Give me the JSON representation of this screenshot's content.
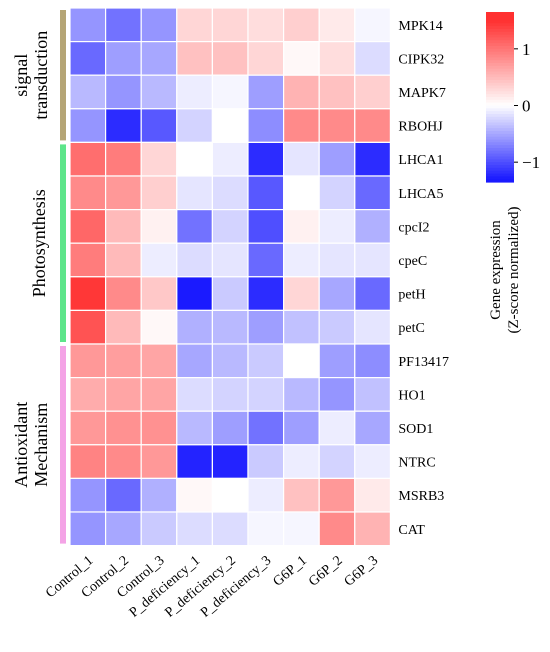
{
  "chart_data": {
    "type": "heatmap",
    "columns": [
      "Control_1",
      "Control_2",
      "Control_3",
      "P_deficiency_1",
      "P_deficiency_2",
      "P_deficiency_3",
      "G6P_1",
      "G6P_2",
      "G6P_3"
    ],
    "rows": [
      "MPK14",
      "CIPK32",
      "MAPK7",
      "RBOHJ",
      "LHCA1",
      "LHCA5",
      "cpcI2",
      "cpeC",
      "petH",
      "petC",
      "PF13417",
      "HO1",
      "SOD1",
      "NTRC",
      "MSRB3",
      "CAT"
    ],
    "values": [
      [
        -0.6,
        -0.8,
        -0.6,
        0.3,
        0.3,
        0.25,
        0.35,
        0.15,
        -0.05
      ],
      [
        -0.85,
        -0.55,
        -0.5,
        0.45,
        0.45,
        0.3,
        0.05,
        0.25,
        -0.2
      ],
      [
        -0.4,
        -0.6,
        -0.4,
        -0.1,
        -0.05,
        -0.55,
        0.55,
        0.45,
        0.35
      ],
      [
        -0.6,
        -1.2,
        -0.95,
        -0.25,
        0.0,
        -0.65,
        0.85,
        0.85,
        0.85
      ],
      [
        1.05,
        0.95,
        0.3,
        0.0,
        -0.1,
        -1.2,
        -0.15,
        -0.55,
        -1.2
      ],
      [
        0.85,
        0.75,
        0.35,
        -0.15,
        -0.2,
        -0.95,
        0.0,
        -0.25,
        -0.85
      ],
      [
        1.1,
        0.5,
        0.1,
        -0.8,
        -0.25,
        -1.0,
        0.1,
        -0.1,
        -0.45
      ],
      [
        0.95,
        0.5,
        -0.1,
        -0.2,
        -0.15,
        -0.85,
        -0.1,
        -0.15,
        -0.15
      ],
      [
        1.45,
        0.85,
        0.4,
        -1.3,
        -0.3,
        -1.2,
        0.3,
        -0.5,
        -0.85
      ],
      [
        1.25,
        0.5,
        0.05,
        -0.45,
        -0.4,
        -0.55,
        -0.35,
        -0.3,
        -0.15
      ],
      [
        0.75,
        0.7,
        0.65,
        -0.5,
        -0.4,
        -0.3,
        0.0,
        -0.55,
        -0.65
      ],
      [
        0.6,
        0.65,
        0.65,
        -0.2,
        -0.25,
        -0.25,
        -0.4,
        -0.6,
        -0.35
      ],
      [
        0.75,
        0.8,
        0.8,
        -0.4,
        -0.55,
        -0.8,
        -0.55,
        -0.1,
        -0.5
      ],
      [
        0.9,
        0.85,
        0.75,
        -1.25,
        -1.25,
        -0.3,
        -0.1,
        -0.25,
        -0.1
      ],
      [
        -0.6,
        -0.85,
        -0.45,
        0.05,
        0.0,
        -0.1,
        0.45,
        0.75,
        0.15
      ],
      [
        -0.6,
        -0.5,
        -0.3,
        -0.2,
        -0.2,
        -0.05,
        -0.05,
        0.85,
        0.55
      ]
    ],
    "groups": [
      {
        "label": "signal\ntransduction",
        "rows": [
          0,
          3
        ],
        "color": "#b5a575"
      },
      {
        "label": "Photosynthesis",
        "rows": [
          4,
          9
        ],
        "color": "#5de58a"
      },
      {
        "label": "Antioxidant\nMechanism",
        "rows": [
          10,
          15
        ],
        "color": "#f4a3e6"
      }
    ],
    "colorbar": {
      "label_line1": "Gene expression",
      "label_line2": "(Z-score normalized)",
      "range": [
        -1.35,
        1.65
      ],
      "ticks": [
        1,
        0,
        -1
      ],
      "tick_labels": [
        "1",
        "0",
        "−1"
      ],
      "low_color": "#1a1aff",
      "mid_color": "#ffffff",
      "high_color": "#ff3030"
    }
  }
}
